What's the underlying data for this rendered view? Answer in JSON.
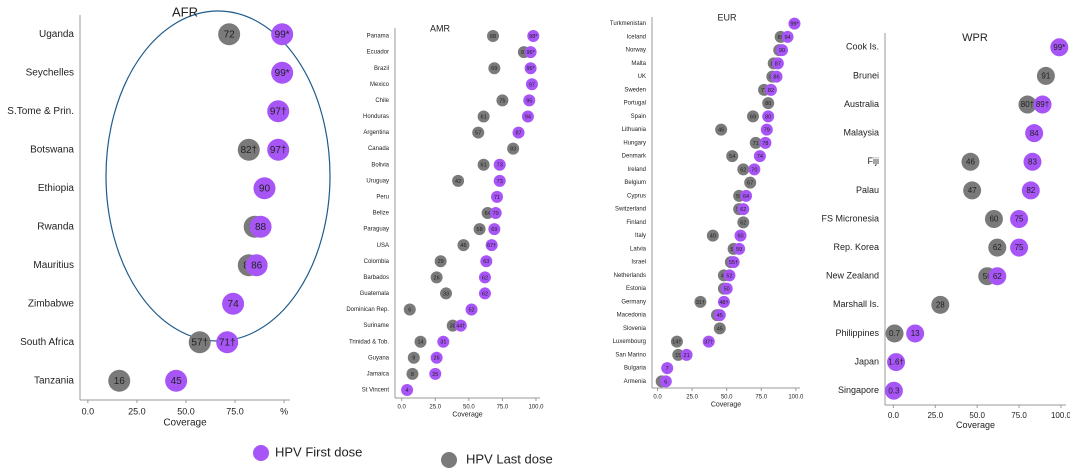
{
  "chart_data": [
    {
      "type": "dot",
      "title": "AFR",
      "x_label": "Coverage",
      "categories": [
        "Uganda",
        "Seychelles",
        "S.Tome & Prin.",
        "Botswana",
        "Ethiopia",
        "Rwanda",
        "Mauritius",
        "Zimbabwe",
        "South Africa",
        "Tanzania"
      ],
      "series": [
        {
          "name": "HPV Last dose",
          "color": "#7a7a7a",
          "values": [
            72,
            null,
            null,
            82,
            null,
            85,
            82,
            null,
            57,
            16
          ],
          "value_labels": [
            null,
            null,
            null,
            "82†",
            null,
            null,
            null,
            null,
            "57†",
            null
          ]
        },
        {
          "name": "HPV First dose",
          "color": "#a855f7",
          "values": [
            99,
            99,
            97,
            97,
            90,
            88,
            86,
            74,
            71,
            45
          ],
          "value_labels": [
            "99*",
            "99*",
            "97†",
            "97†",
            null,
            null,
            null,
            null,
            "71†",
            null
          ]
        }
      ],
      "xlim": [
        -4,
        103
      ],
      "xticks": [
        {
          "value": 0,
          "label": "0.0"
        },
        {
          "value": 25,
          "label": "25.0"
        },
        {
          "value": 50,
          "label": "50.0"
        },
        {
          "value": 75,
          "label": "75.0"
        },
        {
          "value": 100,
          "label": "%"
        }
      ]
    },
    {
      "type": "dot",
      "title": "AMR",
      "x_label": "Coverage",
      "categories": [
        "Panama",
        "Ecuador",
        "Brazil",
        "Mexico",
        "Chile",
        "Honduras",
        "Argentina",
        "Canada",
        "Bolivia",
        "Uruguay",
        "Peru",
        "Belize",
        "Paraguay",
        "USA",
        "Colombia",
        "Barbados",
        "Guatemala",
        "Dominican Rep.",
        "Suriname",
        "Trinidad & Tob.",
        "Guyana",
        "Jamaica",
        "St Vincent"
      ],
      "series": [
        {
          "color": "#7a7a7a",
          "values": [
            68,
            91,
            69,
            null,
            75,
            61,
            57,
            83,
            61,
            42,
            null,
            64,
            58,
            46,
            29,
            26,
            33,
            6,
            38,
            14,
            9,
            8,
            null
          ]
        },
        {
          "color": "#a855f7",
          "values": [
            98,
            96,
            96,
            97,
            95,
            94,
            87,
            null,
            73,
            73,
            71,
            70,
            69,
            67,
            63,
            62,
            62,
            52,
            44,
            31,
            26,
            25,
            4
          ],
          "value_labels": [
            "98*",
            "96*",
            "96*",
            null,
            null,
            null,
            null,
            null,
            null,
            null,
            null,
            null,
            null,
            "67†",
            null,
            null,
            null,
            null,
            "44†",
            null,
            null,
            null,
            null
          ]
        }
      ],
      "xlim": [
        -5,
        103
      ],
      "xticks": [
        {
          "value": 0,
          "label": "0.0"
        },
        {
          "value": 25,
          "label": "25.0"
        },
        {
          "value": 50,
          "label": "50.0"
        },
        {
          "value": 75,
          "label": "75.0"
        },
        {
          "value": 100,
          "label": "100.0"
        }
      ]
    },
    {
      "type": "dot",
      "title": "EUR",
      "x_label": "Coverage",
      "categories": [
        "Turkmenistan",
        "Iceland",
        "Norway",
        "Malta",
        "UK",
        "Sweden",
        "Portugal",
        "Spain",
        "Lithuania",
        "Hungary",
        "Denmark",
        "Ireland",
        "Belgium",
        "Cyprus",
        "Switzerland",
        "Finland",
        "Italy",
        "Latvia",
        "Israel",
        "Netherlands",
        "Estonia",
        "Germany",
        "Macedonia",
        "Slovenia",
        "Luxembourg",
        "San Marino",
        "Bulgaria",
        "Armenia"
      ],
      "series": [
        {
          "color": "#7a7a7a",
          "values": [
            null,
            89,
            88,
            84,
            83,
            77,
            80,
            69,
            46,
            71,
            54,
            62,
            67,
            59,
            59,
            62,
            40,
            55,
            53,
            48,
            48,
            31,
            43,
            45,
            14,
            15,
            null,
            3
          ],
          "value_labels": [
            null,
            null,
            null,
            null,
            null,
            null,
            null,
            null,
            null,
            null,
            null,
            null,
            null,
            null,
            null,
            null,
            null,
            null,
            null,
            null,
            null,
            "31†",
            null,
            null,
            "14†",
            null,
            null,
            null
          ]
        },
        {
          "color": "#a855f7",
          "values": [
            99,
            94,
            90,
            87,
            86,
            82,
            null,
            80,
            79,
            78,
            74,
            70,
            null,
            64,
            62,
            null,
            60,
            59,
            55,
            52,
            50,
            48,
            45,
            null,
            37,
            21,
            7,
            6
          ],
          "value_labels": [
            "99*",
            null,
            null,
            null,
            null,
            null,
            null,
            null,
            null,
            null,
            null,
            null,
            null,
            null,
            null,
            null,
            null,
            null,
            "55†",
            null,
            null,
            "48†",
            null,
            null,
            "37†",
            null,
            null,
            null
          ]
        }
      ],
      "xlim": [
        -4,
        103
      ],
      "xticks": [
        {
          "value": 0,
          "label": "0.0"
        },
        {
          "value": 25,
          "label": "25.0"
        },
        {
          "value": 50,
          "label": "50.0"
        },
        {
          "value": 75,
          "label": "75.0"
        },
        {
          "value": 100,
          "label": "100.0"
        }
      ]
    },
    {
      "type": "dot",
      "title": "WPR",
      "x_label": "Coverage",
      "categories": [
        "Cook Is.",
        "Brunei",
        "Australia",
        "Malaysia",
        "Fiji",
        "Palau",
        "FS Micronesia",
        "Rep. Korea",
        "New Zealand",
        "Marshall Is.",
        "Philippines",
        "Japan",
        "Singapore"
      ],
      "series": [
        {
          "color": "#7a7a7a",
          "values": [
            null,
            91,
            80,
            null,
            46,
            47,
            60,
            62,
            56,
            28,
            0.7,
            null,
            null
          ],
          "value_labels": [
            null,
            null,
            "80†",
            null,
            null,
            null,
            null,
            null,
            null,
            null,
            null,
            null,
            null
          ]
        },
        {
          "color": "#a855f7",
          "values": [
            99,
            null,
            89,
            84,
            83,
            82,
            75,
            75,
            62,
            null,
            13,
            1.6,
            0.3
          ],
          "value_labels": [
            "99*",
            null,
            "89†",
            null,
            null,
            null,
            null,
            null,
            null,
            null,
            null,
            "1.6†",
            null
          ]
        }
      ],
      "xlim": [
        -5,
        103
      ],
      "xticks": [
        {
          "value": 0,
          "label": "0.0"
        },
        {
          "value": 25,
          "label": "25.0"
        },
        {
          "value": 50,
          "label": "50.0"
        },
        {
          "value": 75,
          "label": "75.0"
        },
        {
          "value": 100,
          "label": "100.0"
        }
      ]
    }
  ]
}
